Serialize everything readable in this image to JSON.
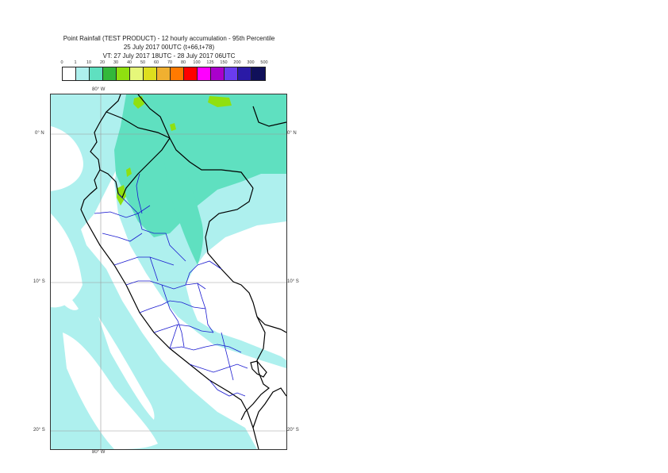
{
  "title": {
    "line1": "Point Rainfall (TEST PRODUCT) - 12 hourly accumulation - 95th Percentile",
    "line2": "25 July 2017 00UTC (t+66,t+78)",
    "line3": "VT: 27 July 2017 18UTC - 28 July 2017 06UTC"
  },
  "legend": {
    "ticks": [
      "0",
      "1",
      "10",
      "20",
      "30",
      "40",
      "50",
      "60",
      "70",
      "80",
      "100",
      "125",
      "150",
      "200",
      "300",
      "500"
    ],
    "colors": [
      "#ffffff",
      "#aef0ee",
      "#5fe0c0",
      "#33b83a",
      "#90e010",
      "#e6f77a",
      "#dede1e",
      "#f0b030",
      "#ff7a00",
      "#ff0000",
      "#ff00ff",
      "#aa00cc",
      "#6a3cf0",
      "#2a1aa6",
      "#10105a"
    ]
  },
  "axes": {
    "top_lon": "80° W",
    "bottom_lon": "80° W",
    "lat_0_left": "0° N",
    "lat_0_right": "0° N",
    "lat_10_left": "10° S",
    "lat_10_right": "10° S",
    "lat_20_left": "20° S",
    "lat_20_right": "20° S"
  },
  "map": {
    "land_color": "#ffffff",
    "light_rain_color": "#aef0ee",
    "moderate_rain_color": "#5fe0c0",
    "heavy_rain_color": "#90e010",
    "country_border_color": "#000000",
    "region_border_color": "#1a1ad0",
    "graticule_color": "#9a9a9a"
  }
}
